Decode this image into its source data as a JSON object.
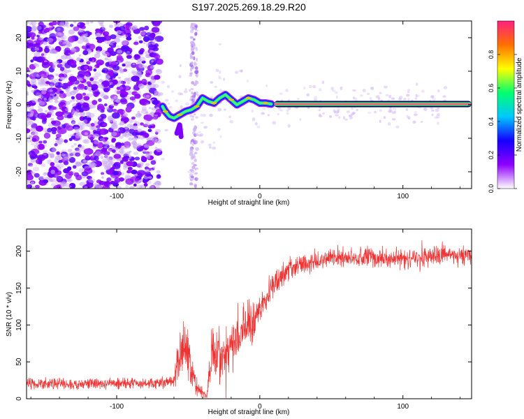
{
  "title": "S197.2025.269.18.29.R20",
  "chart_data": [
    {
      "type": "heatmap",
      "name": "spectrogram",
      "xlabel": "Height of straight line (km)",
      "ylabel": "Frequency (Hz)",
      "xlim": [
        -163,
        148
      ],
      "ylim": [
        -25,
        25
      ],
      "x_ticks": [
        -100,
        0,
        100
      ],
      "y_ticks": [
        -20,
        -10,
        0,
        10,
        20
      ],
      "colorbar": {
        "label": "Normalized spectral amplitude",
        "range": [
          0,
          1
        ],
        "ticks": [
          "0.0",
          "0.2",
          "0.4",
          "0.6",
          "0.8"
        ],
        "stops": [
          "#ffffff",
          "#8f00ff",
          "#1400ff",
          "#00c8ff",
          "#00ff70",
          "#ffff00",
          "#ff7000",
          "#ff2080"
        ]
      },
      "noise_region_km": [
        -163,
        -70
      ],
      "noise_stripe_km": -46,
      "carrier_line": {
        "from_km": 10,
        "to_km": 148,
        "frequency_hz": 0.2,
        "amplitude": 1.0
      },
      "transition_track": [
        {
          "x": -68,
          "f": -0.5
        },
        {
          "x": -66,
          "f": -2.0
        },
        {
          "x": -63,
          "f": -3.5
        },
        {
          "x": -60,
          "f": -4.0
        },
        {
          "x": -56,
          "f": -3.0
        },
        {
          "x": -52,
          "f": -2.0
        },
        {
          "x": -48,
          "f": -1.5
        },
        {
          "x": -44,
          "f": -0.5
        },
        {
          "x": -40,
          "f": 2.0
        },
        {
          "x": -36,
          "f": 1.0
        },
        {
          "x": -32,
          "f": 0.5
        },
        {
          "x": -28,
          "f": 2.0
        },
        {
          "x": -24,
          "f": 3.0
        },
        {
          "x": -20,
          "f": 1.5
        },
        {
          "x": -16,
          "f": 0.0
        },
        {
          "x": -12,
          "f": 1.0
        },
        {
          "x": -8,
          "f": 2.0
        },
        {
          "x": -4,
          "f": 1.5
        },
        {
          "x": 0,
          "f": 0.5
        },
        {
          "x": 4,
          "f": 0.5
        },
        {
          "x": 8,
          "f": 0.2
        }
      ],
      "side_blob": [
        {
          "x": -58,
          "f": -8.5
        },
        {
          "x": -56,
          "f": -6.0
        },
        {
          "x": -55,
          "f": -9.5
        }
      ]
    },
    {
      "type": "line",
      "name": "snr",
      "xlabel": "Height of straight line (km)",
      "ylabel": "SNR (10 * v/v)",
      "xlim": [
        -163,
        148
      ],
      "ylim": [
        0,
        230
      ],
      "x_ticks": [
        -100,
        0,
        100
      ],
      "y_ticks": [
        0,
        50,
        100,
        150,
        200
      ],
      "color": "#ee3333",
      "series": [
        {
          "name": "SNR",
          "x": [
            -163,
            -140,
            -120,
            -100,
            -80,
            -60,
            -58,
            -55,
            -52,
            -50,
            -47,
            -44,
            -40,
            -37,
            -35,
            -33,
            -30,
            -27,
            -25,
            -22,
            -20,
            -17,
            -15,
            -12,
            -10,
            -8,
            -5,
            -3,
            0,
            5,
            10,
            15,
            20,
            25,
            30,
            35,
            40,
            50,
            60,
            70,
            80,
            90,
            100,
            110,
            120,
            130,
            140,
            148
          ],
          "mean": [
            20,
            20,
            20,
            21,
            21,
            22,
            50,
            60,
            70,
            55,
            35,
            15,
            8,
            5,
            40,
            75,
            60,
            55,
            60,
            60,
            70,
            80,
            90,
            100,
            95,
            100,
            105,
            110,
            120,
            140,
            155,
            165,
            175,
            180,
            182,
            185,
            188,
            190,
            190,
            192,
            192,
            190,
            190,
            192,
            192,
            195,
            195,
            195
          ],
          "noise": [
            8,
            8,
            8,
            8,
            8,
            9,
            25,
            35,
            40,
            35,
            25,
            15,
            8,
            5,
            25,
            45,
            40,
            35,
            35,
            35,
            35,
            40,
            40,
            40,
            35,
            35,
            30,
            30,
            25,
            22,
            20,
            18,
            16,
            15,
            15,
            15,
            15,
            15,
            15,
            15,
            15,
            15,
            15,
            15,
            15,
            15,
            15,
            15
          ]
        }
      ]
    }
  ]
}
